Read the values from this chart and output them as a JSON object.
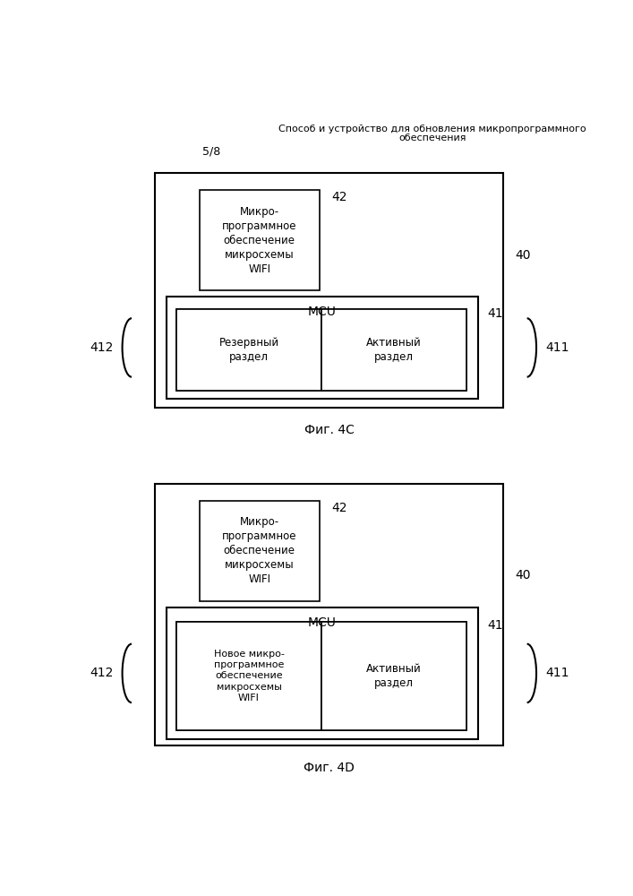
{
  "title_line1": "Способ и устройство для обновления микропрограммного",
  "title_line2": "обеспечения",
  "page_label": "5/8",
  "fig_c_label": "Фиг. 4C",
  "fig_d_label": "Фиг. 4D",
  "wifi_text_c": "Микро-\nпрограммное\nобеспечение\nмикросхемы\nWIFI",
  "wifi_text_d": "Микро-\nпрограммное\nобеспечение\nмикросхемы\nWIFI",
  "mcu_label": "MCU",
  "part1_c": "Резервный\nраздел",
  "part2_c": "Активный\nраздел",
  "part1_d": "Новое микро-\nпрограммное\nобеспечение\nмикросхемы\nWIFI",
  "part2_d": "Активный\nраздел",
  "lbl_40": "40",
  "lbl_41": "41",
  "lbl_42": "42",
  "lbl_411": "411",
  "lbl_412": "412",
  "bg": "#ffffff",
  "black": "#000000"
}
